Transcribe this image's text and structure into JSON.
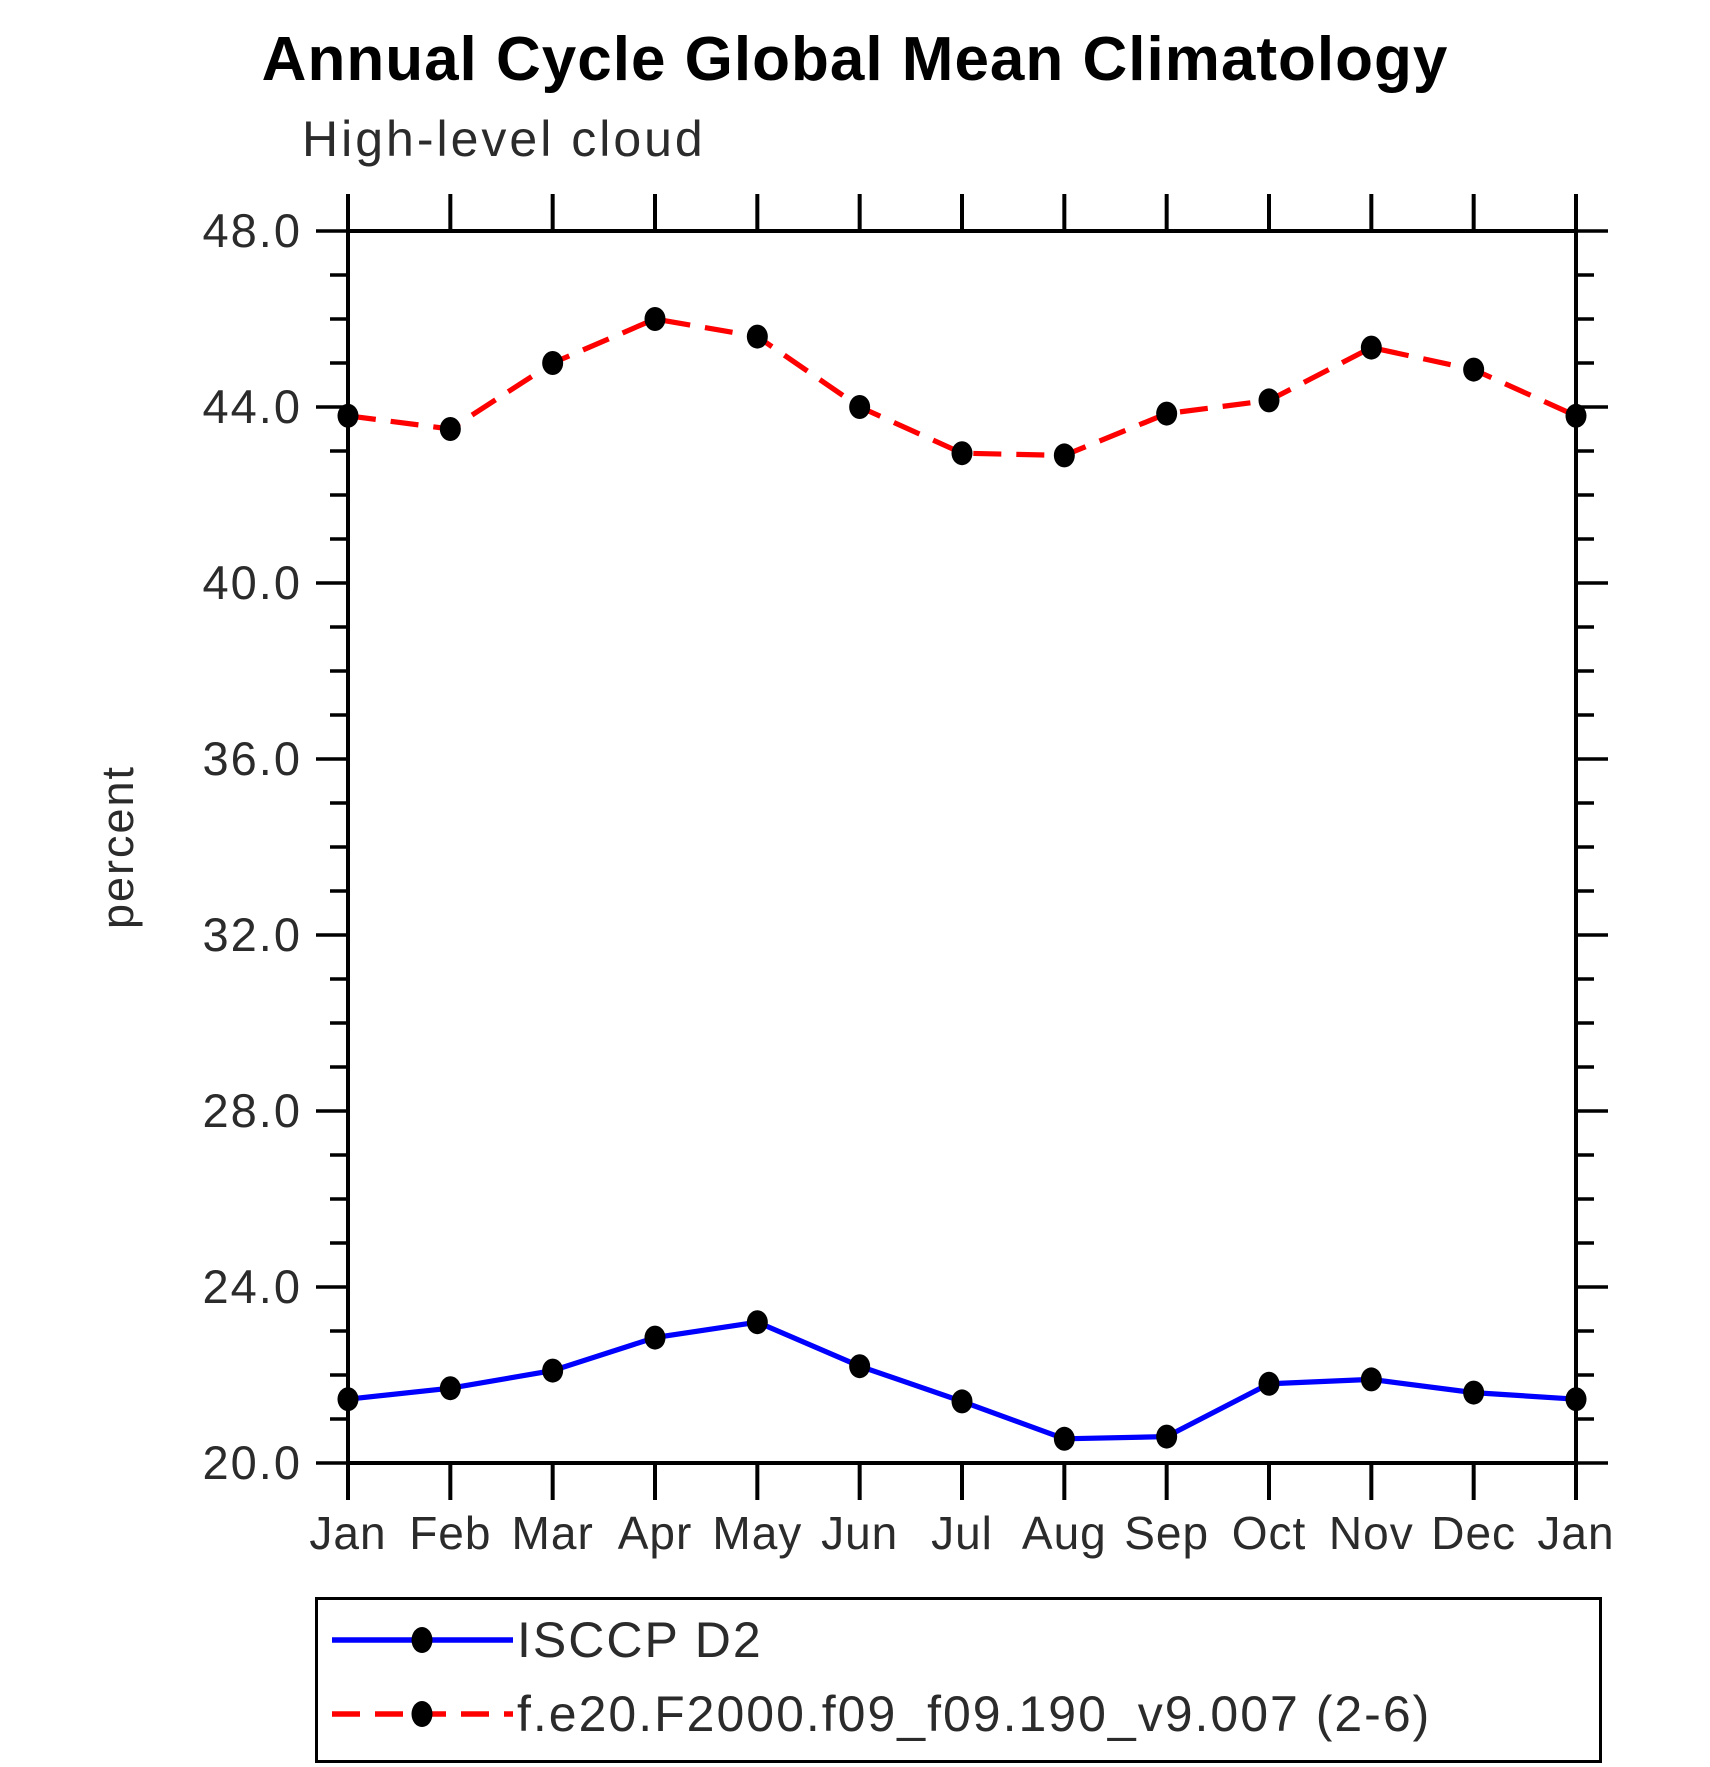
{
  "chart_data": {
    "type": "line",
    "title": "Annual Cycle Global Mean Climatology",
    "subtitle": "High-level cloud",
    "xlabel": "",
    "ylabel": "percent",
    "ylim": [
      20.0,
      48.0
    ],
    "ytick_major_interval": 4.0,
    "ytick_minor_interval": 1.0,
    "ytick_labels": [
      "20.0",
      "24.0",
      "28.0",
      "32.0",
      "36.0",
      "40.0",
      "44.0",
      "48.0"
    ],
    "categories": [
      "Jan",
      "Feb",
      "Mar",
      "Apr",
      "May",
      "Jun",
      "Jul",
      "Aug",
      "Sep",
      "Oct",
      "Nov",
      "Dec",
      "Jan"
    ],
    "series": [
      {
        "name": "ISCCP D2",
        "line_color": "#0000ff",
        "line_style": "solid",
        "marker": "filled-circle",
        "marker_color": "#000000",
        "values": [
          21.45,
          21.7,
          22.1,
          22.85,
          23.2,
          22.2,
          21.4,
          20.55,
          20.6,
          21.8,
          21.9,
          21.6,
          21.45
        ]
      },
      {
        "name": "f.e20.F2000.f09_f09.190_v9.007 (2-6)",
        "line_color": "#ff0000",
        "line_style": "dashed",
        "marker": "filled-circle",
        "marker_color": "#000000",
        "values": [
          43.8,
          43.5,
          45.0,
          46.0,
          45.6,
          44.0,
          42.95,
          42.9,
          43.85,
          44.15,
          45.35,
          44.85,
          43.8
        ]
      }
    ],
    "grid": false,
    "legend_position": "bottom-left-box",
    "axis_color": "#000000",
    "background_color": "#ffffff"
  }
}
